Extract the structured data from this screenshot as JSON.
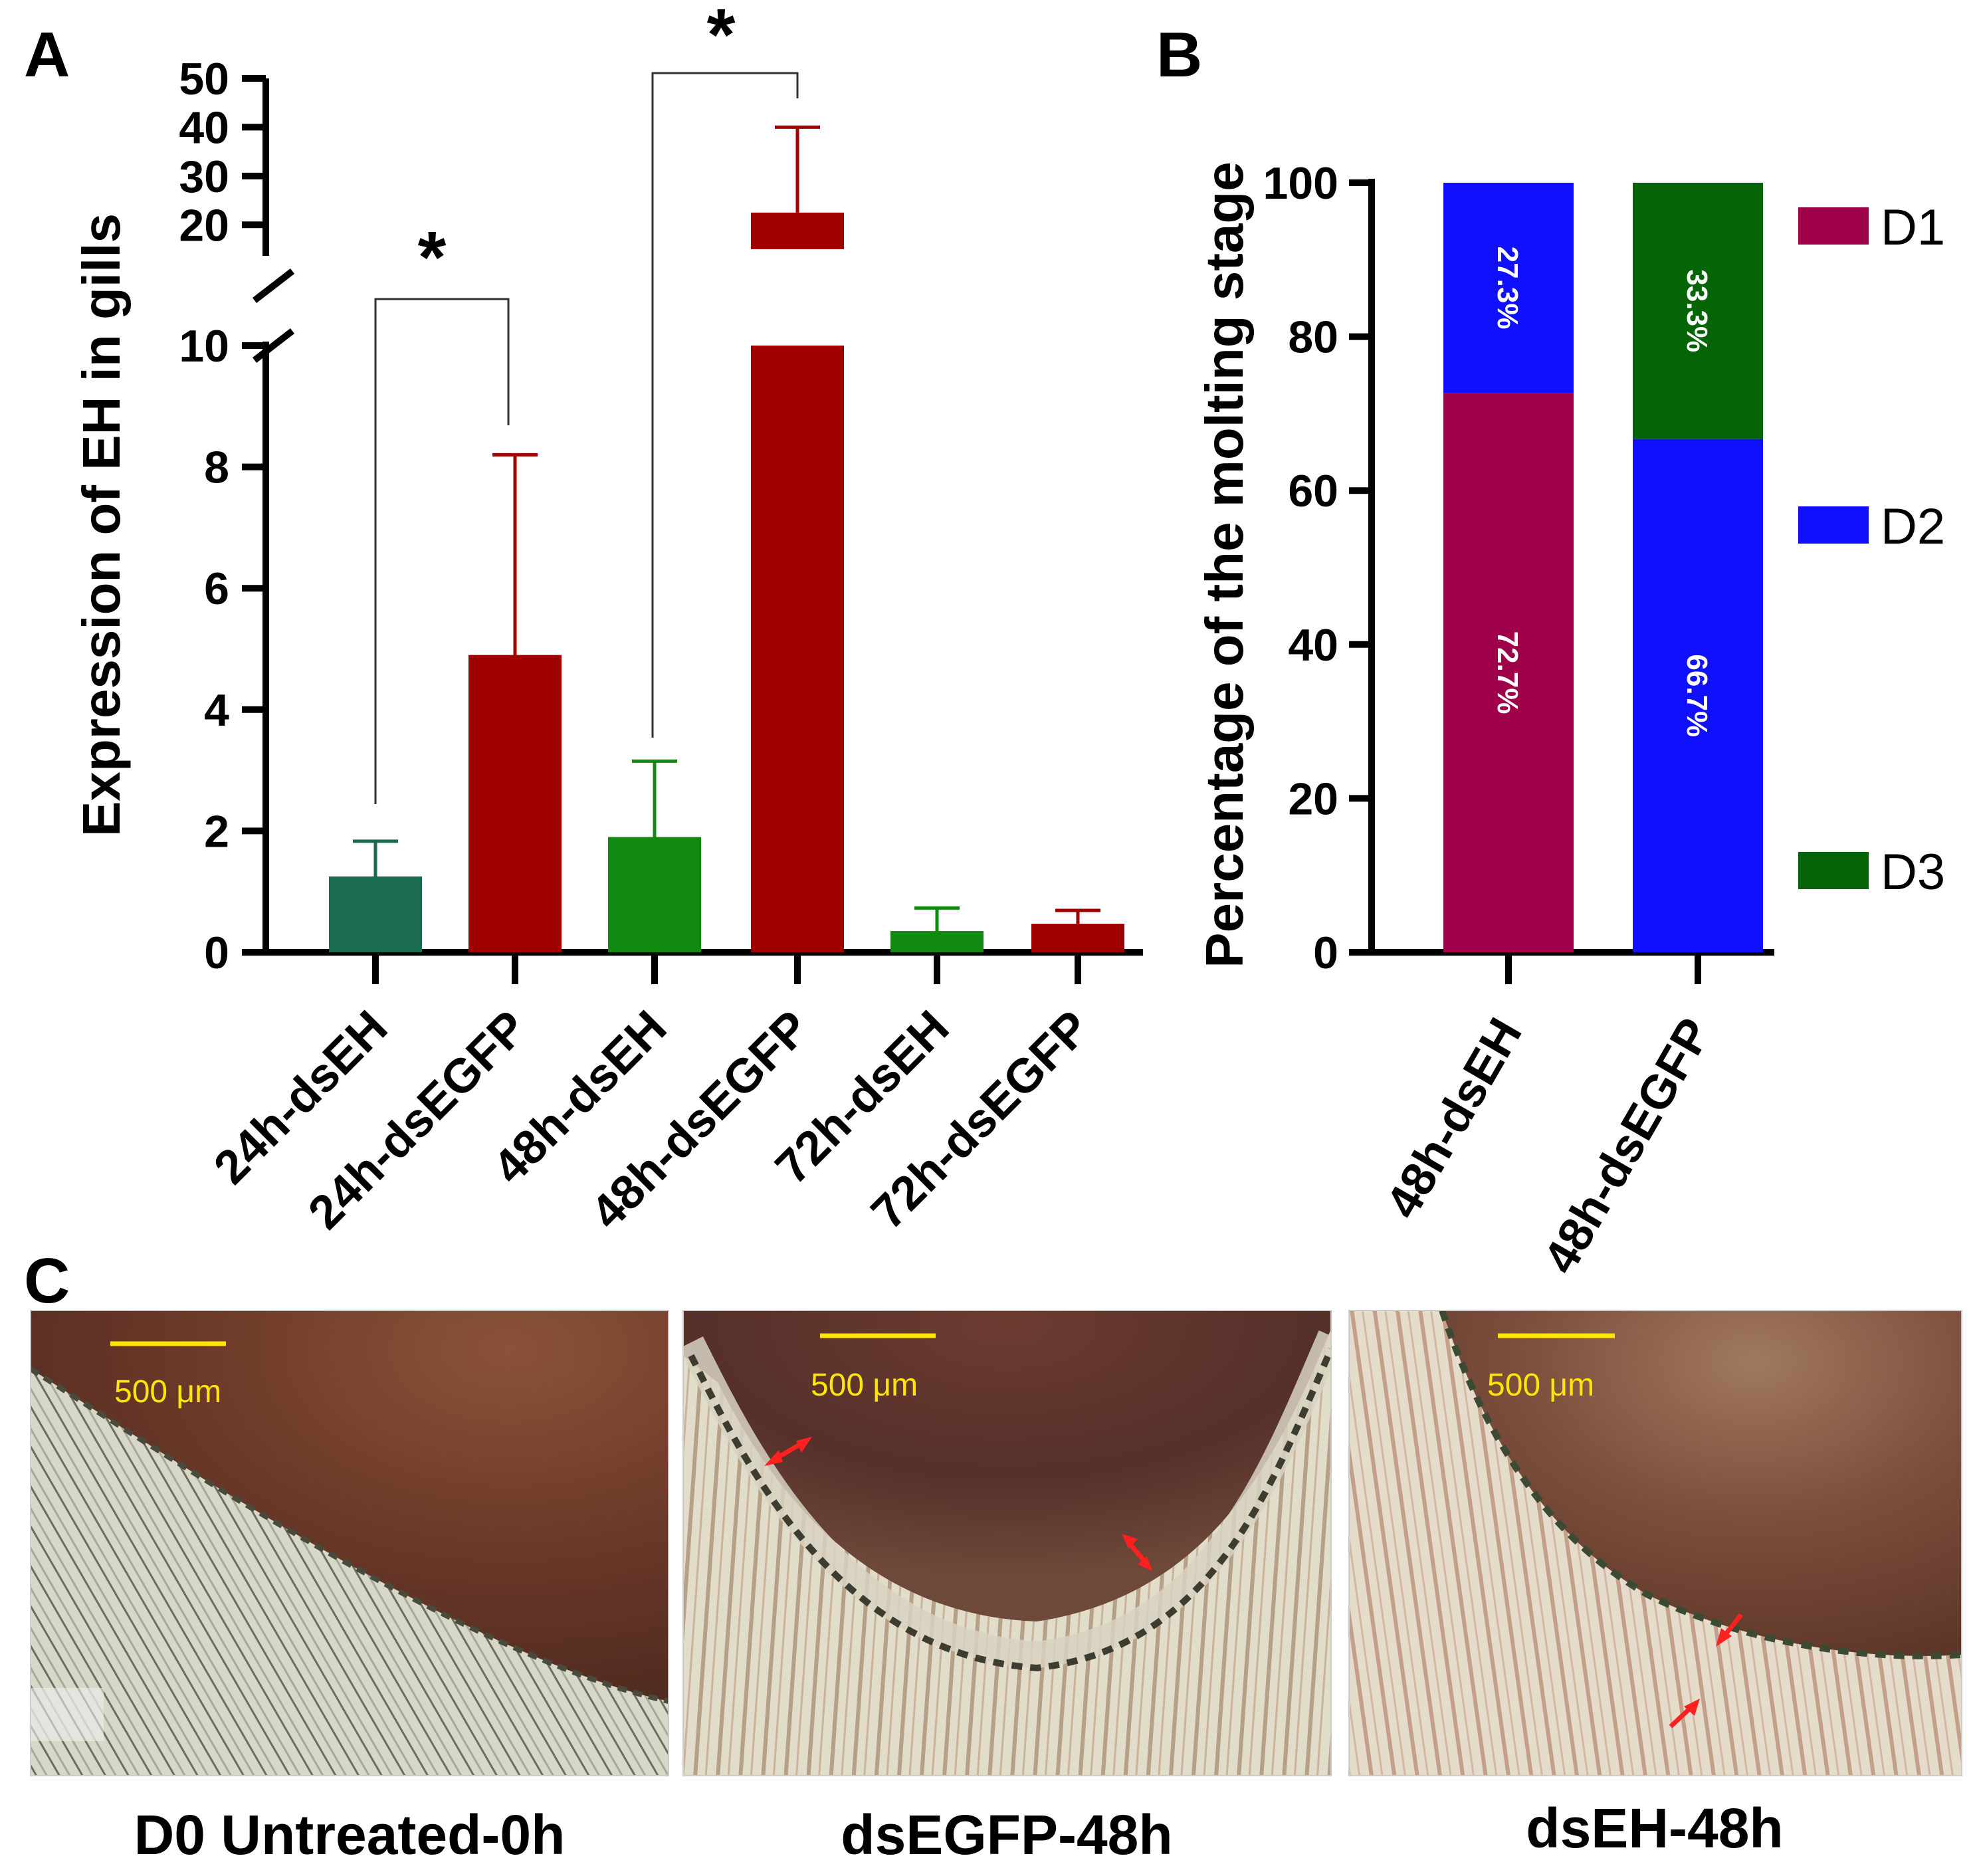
{
  "colors": {
    "green": "#128a12",
    "teal_green": "#1a6b4f",
    "red": "#a00000",
    "d1": "#9e0049",
    "d2": "#1010ff",
    "d3": "#056405",
    "scale": "#ffe600",
    "arrow": "#ff2020"
  },
  "chart_data": [
    {
      "panel": "A",
      "type": "bar",
      "ylabel": "Expression of EH in gills",
      "categories": [
        "24h-dsEH",
        "24h-dsEGFP",
        "48h-dsEH",
        "48h-dsEGFP",
        "72h-dsEH",
        "72h-dsEGFP"
      ],
      "values": [
        1.25,
        4.9,
        1.9,
        22.5,
        0.35,
        0.47
      ],
      "errors": [
        0.58,
        3.3,
        1.25,
        17.5,
        0.38,
        0.22
      ],
      "bar_colors": [
        "#1a6b4f",
        "#a00000",
        "#128a12",
        "#a00000",
        "#128a12",
        "#a00000"
      ],
      "ylim_lower": [
        0,
        10
      ],
      "yticks_lower": [
        "0",
        "2",
        "4",
        "6",
        "8",
        "10"
      ],
      "ylim_upper": [
        15,
        50
      ],
      "yticks_upper": [
        "20",
        "30",
        "40",
        "50"
      ],
      "axis_break": [
        10,
        15
      ],
      "significance": [
        {
          "pair": [
            "24h-dsEH",
            "24h-dsEGFP"
          ],
          "label": "*"
        },
        {
          "pair": [
            "48h-dsEH",
            "48h-dsEGFP"
          ],
          "label": "*"
        }
      ]
    },
    {
      "panel": "B",
      "type": "bar",
      "stacked": true,
      "ylabel": "Percentage of the molting stage",
      "categories": [
        "48h-dsEH",
        "48h-dsEGFP"
      ],
      "ylim": [
        0,
        100
      ],
      "yticks": [
        "0",
        "20",
        "40",
        "60",
        "80",
        "100"
      ],
      "series": [
        {
          "name": "D1",
          "values": [
            72.7,
            0
          ],
          "labels": [
            "72.7%",
            ""
          ]
        },
        {
          "name": "D2",
          "values": [
            27.3,
            66.7
          ],
          "labels": [
            "27.3%",
            "66.7%"
          ]
        },
        {
          "name": "D3",
          "values": [
            0,
            33.3
          ],
          "labels": [
            "",
            "33.3%"
          ]
        }
      ],
      "legend": [
        "D1",
        "D2",
        "D3"
      ]
    }
  ],
  "panel_c": {
    "letter": "C",
    "images": [
      {
        "label": "D0 Untreated-0h",
        "scale": "500 μm"
      },
      {
        "label": "dsEGFP-48h",
        "scale": "500 μm"
      },
      {
        "label": "dsEH-48h",
        "scale": "500 μm"
      }
    ]
  },
  "panel_letters": {
    "a": "A",
    "b": "B"
  }
}
